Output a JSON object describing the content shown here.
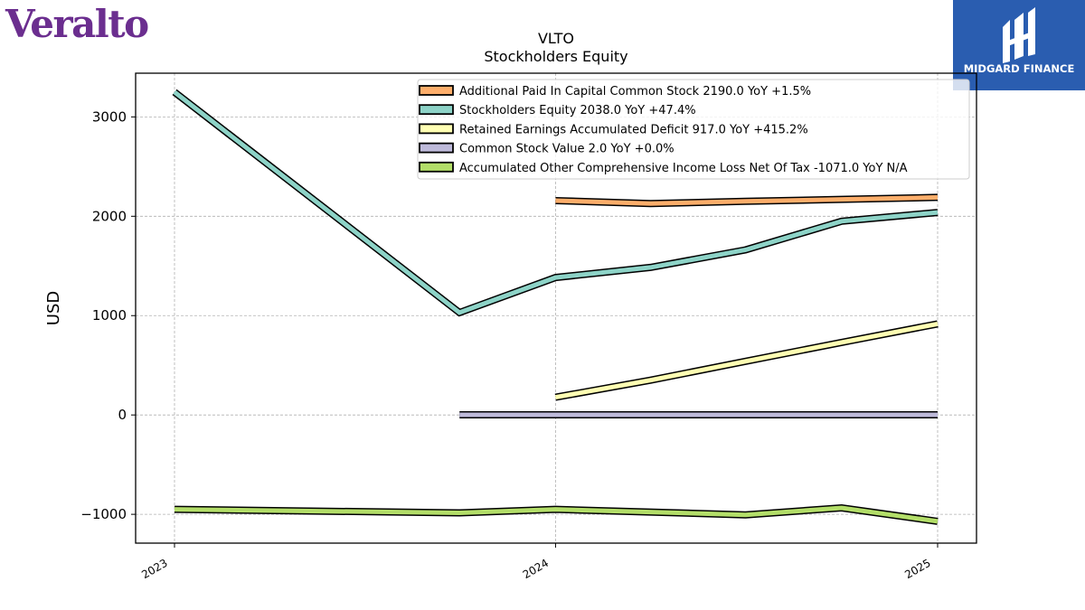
{
  "brand": {
    "logo_text": "Veralto",
    "logo_color": "#6b2e8f"
  },
  "badge": {
    "text": "MIDGARD FINANCE",
    "color": "#2a5db0"
  },
  "chart_data": {
    "type": "line",
    "title": "VLTO",
    "subtitle": "Stockholders  Equity",
    "xlabel": "",
    "ylabel": "USD",
    "xlim": [
      "2023-01-01",
      "2025-01-01"
    ],
    "ylim": [
      -1290,
      3440
    ],
    "x_ticks": [
      "2023",
      "2024",
      "2025"
    ],
    "y_ticks": [
      -1000,
      0,
      1000,
      2000,
      3000
    ],
    "y_tick_labels": [
      "−1000",
      "0",
      "1000",
      "2000",
      "3000"
    ],
    "grid": true,
    "legend_position": "top-right",
    "series": [
      {
        "name": "Additional Paid In Capital Common Stock  2190.0 YoY +1.5%",
        "color": "#fdae6b",
        "points": [
          [
            "2024-01-01",
            2157
          ],
          [
            "2024-04-01",
            2128
          ],
          [
            "2024-07-01",
            2150
          ],
          [
            "2024-10-01",
            2170
          ],
          [
            "2025-01-01",
            2190
          ]
        ]
      },
      {
        "name": "Stockholders Equity  2038.0 YoY +47.4%",
        "color": "#8dd3c7",
        "points": [
          [
            "2023-01-01",
            3250
          ],
          [
            "2023-10-01",
            1030
          ],
          [
            "2024-01-01",
            1383
          ],
          [
            "2024-04-01",
            1485
          ],
          [
            "2024-07-01",
            1662
          ],
          [
            "2024-10-01",
            1950
          ],
          [
            "2025-01-01",
            2038
          ]
        ]
      },
      {
        "name": "Retained Earnings Accumulated Deficit  917.0 YoY +415.2%",
        "color": "#ffffb3",
        "points": [
          [
            "2024-01-01",
            178
          ],
          [
            "2024-04-01",
            350
          ],
          [
            "2024-07-01",
            540
          ],
          [
            "2024-10-01",
            730
          ],
          [
            "2025-01-01",
            917
          ]
        ]
      },
      {
        "name": "Common Stock Value  2.0 YoY +0.0%",
        "color": "#bebada",
        "points": [
          [
            "2023-10-01",
            2
          ],
          [
            "2024-01-01",
            2
          ],
          [
            "2024-04-01",
            2
          ],
          [
            "2024-07-01",
            2
          ],
          [
            "2024-10-01",
            2
          ],
          [
            "2025-01-01",
            2
          ]
        ]
      },
      {
        "name": "Accumulated Other Comprehensive Income Loss Net Of Tax  -1071.0 YoY N/A",
        "color": "#b3de69",
        "points": [
          [
            "2023-01-01",
            -950
          ],
          [
            "2023-10-01",
            -985
          ],
          [
            "2024-01-01",
            -950
          ],
          [
            "2024-07-01",
            -1005
          ],
          [
            "2024-10-01",
            -935
          ],
          [
            "2025-01-01",
            -1071
          ]
        ]
      }
    ]
  }
}
